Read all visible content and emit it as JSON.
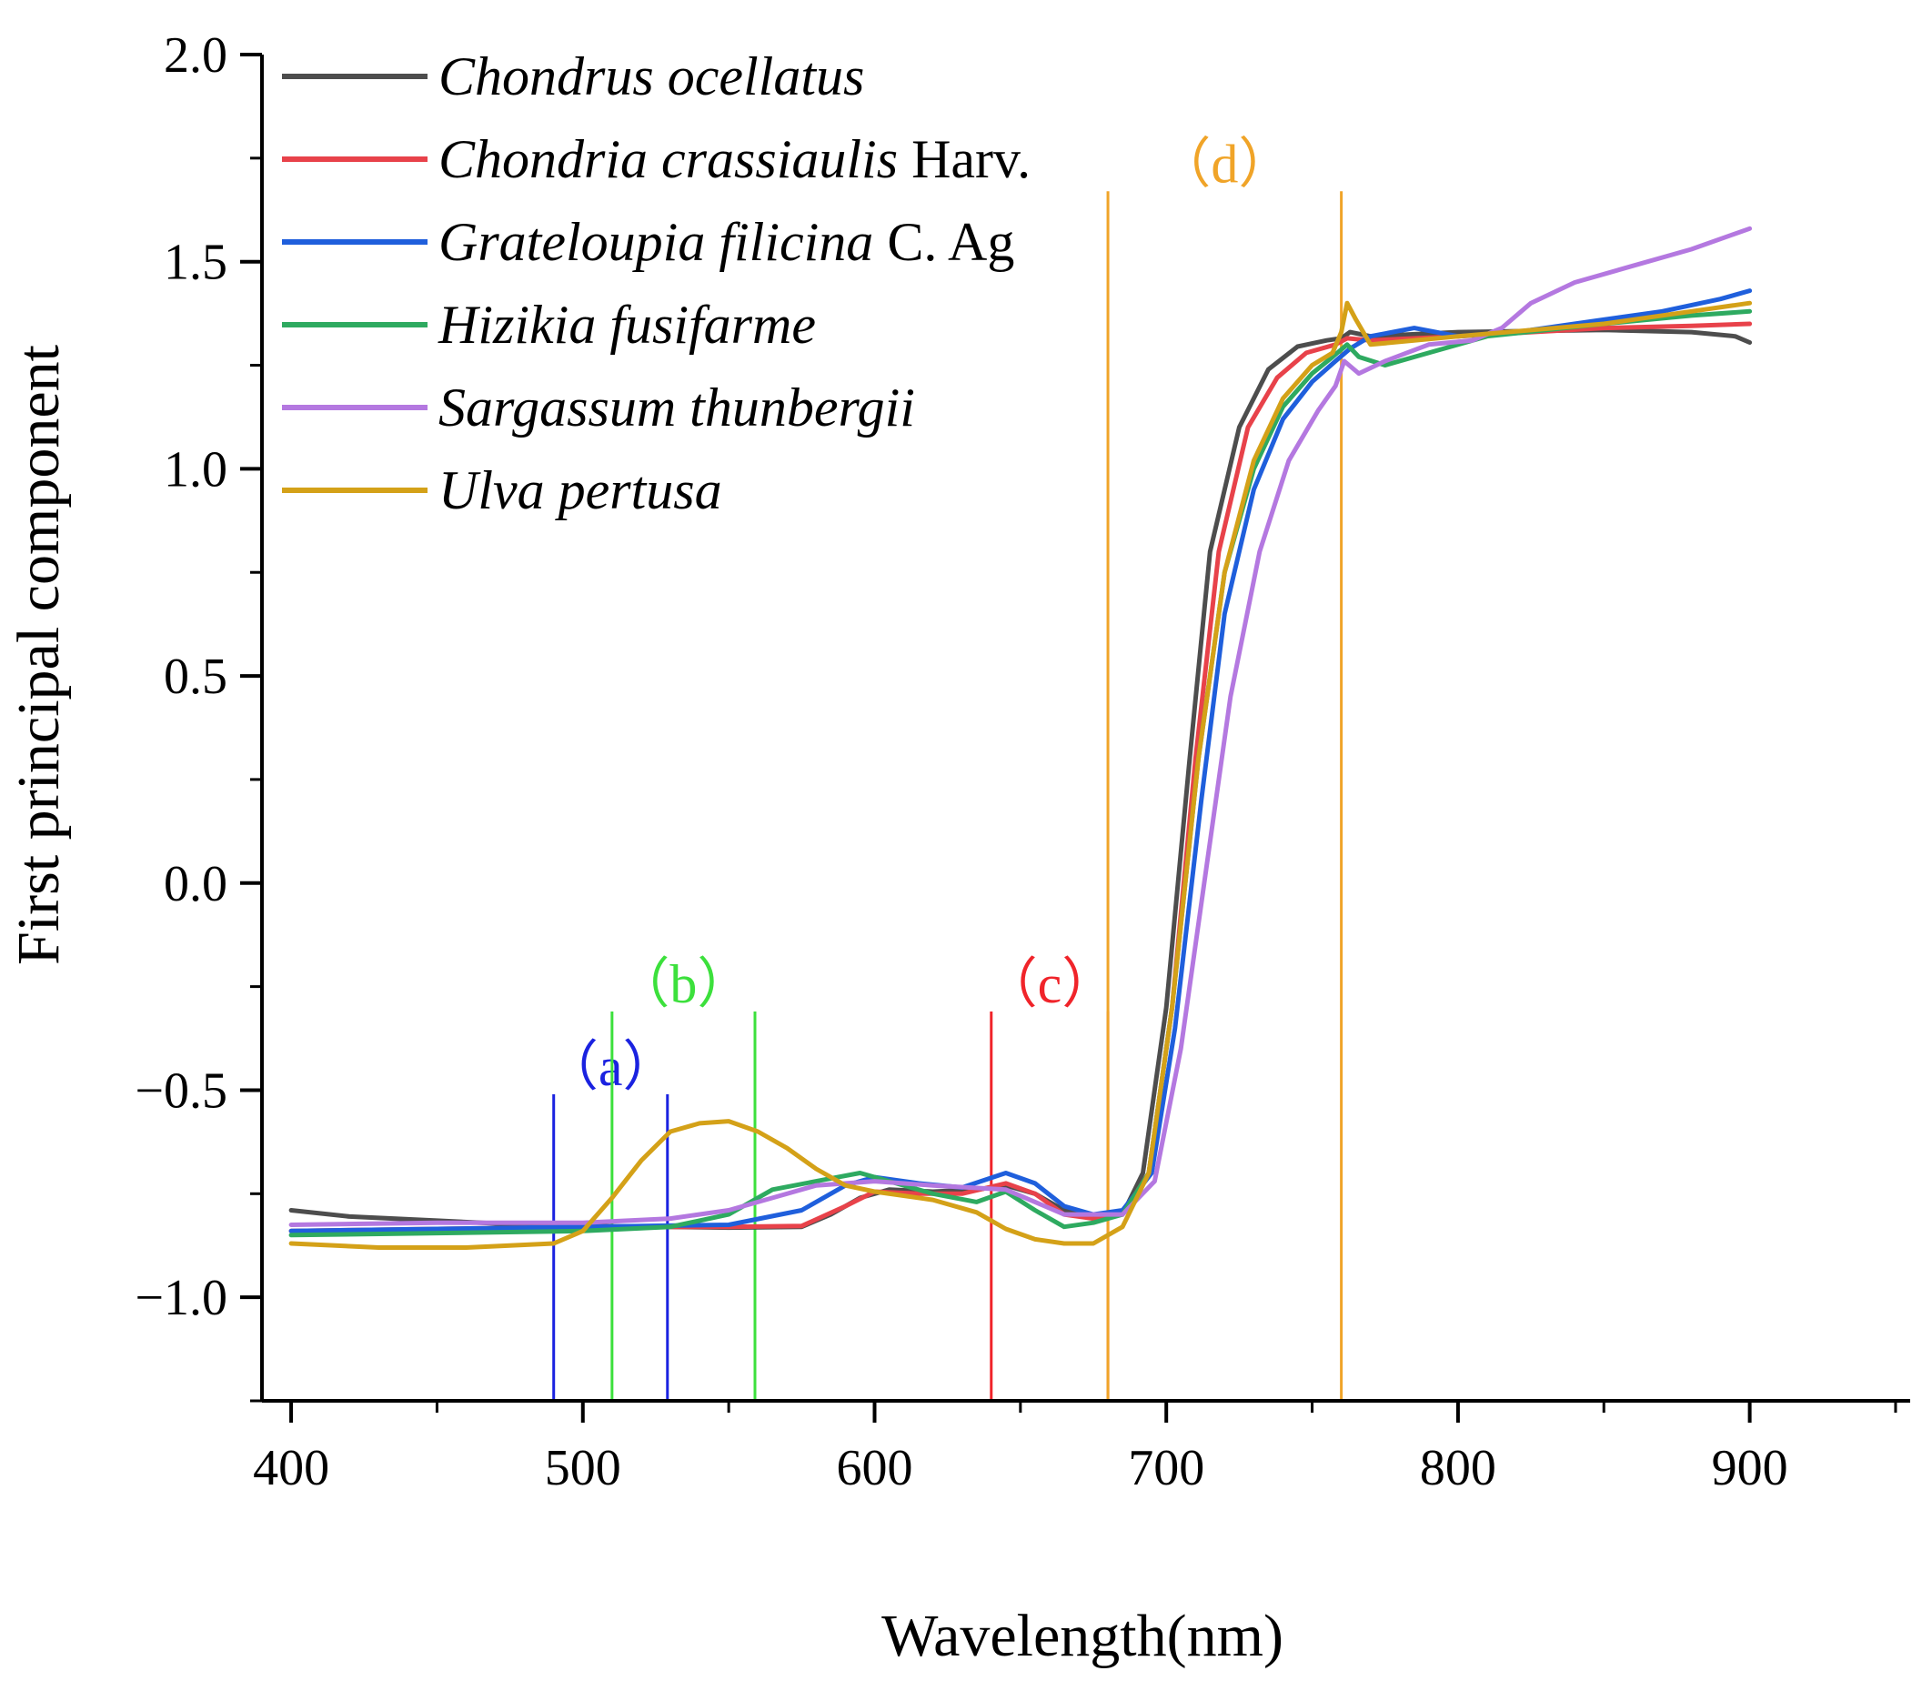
{
  "chart_data": {
    "type": "line",
    "title": "",
    "xlabel": "Wavelength(nm)",
    "ylabel": "First principal component",
    "xlim": [
      390,
      955
    ],
    "ylim": [
      -1.25,
      2.0
    ],
    "x_ticks": [
      400,
      500,
      600,
      700,
      800,
      900
    ],
    "x_tick_labels": [
      "400",
      "500",
      "600",
      "700",
      "800",
      "900"
    ],
    "y_ticks": [
      -1.0,
      -0.5,
      0.0,
      0.5,
      1.0,
      1.5,
      2.0
    ],
    "y_tick_labels": [
      "−1.0",
      "−0.5",
      "0.0",
      "0.5",
      "1.0",
      "1.5",
      "2.0"
    ],
    "grid": false,
    "legend_position": "top-left",
    "series": [
      {
        "name_italic": "Chondrus ocellatus",
        "name_suffix": "",
        "color": "#4d4d4d",
        "points": [
          [
            400,
            -0.79
          ],
          [
            420,
            -0.805
          ],
          [
            450,
            -0.815
          ],
          [
            480,
            -0.825
          ],
          [
            500,
            -0.828
          ],
          [
            550,
            -0.832
          ],
          [
            575,
            -0.83
          ],
          [
            585,
            -0.8
          ],
          [
            595,
            -0.76
          ],
          [
            605,
            -0.74
          ],
          [
            620,
            -0.745
          ],
          [
            635,
            -0.74
          ],
          [
            645,
            -0.73
          ],
          [
            655,
            -0.75
          ],
          [
            665,
            -0.79
          ],
          [
            675,
            -0.81
          ],
          [
            685,
            -0.8
          ],
          [
            692,
            -0.7
          ],
          [
            700,
            -0.3
          ],
          [
            708,
            0.3
          ],
          [
            715,
            0.8
          ],
          [
            725,
            1.1
          ],
          [
            735,
            1.24
          ],
          [
            745,
            1.295
          ],
          [
            755,
            1.31
          ],
          [
            760,
            1.315
          ],
          [
            763,
            1.33
          ],
          [
            770,
            1.32
          ],
          [
            800,
            1.33
          ],
          [
            850,
            1.335
          ],
          [
            880,
            1.33
          ],
          [
            895,
            1.32
          ],
          [
            900,
            1.305
          ]
        ]
      },
      {
        "name_italic": "Chondria crassiaulis",
        "name_suffix": " Harv.",
        "color": "#e8424a",
        "points": [
          [
            400,
            -0.84
          ],
          [
            450,
            -0.835
          ],
          [
            500,
            -0.83
          ],
          [
            550,
            -0.83
          ],
          [
            575,
            -0.828
          ],
          [
            590,
            -0.78
          ],
          [
            600,
            -0.745
          ],
          [
            615,
            -0.75
          ],
          [
            630,
            -0.75
          ],
          [
            645,
            -0.725
          ],
          [
            655,
            -0.75
          ],
          [
            665,
            -0.8
          ],
          [
            675,
            -0.81
          ],
          [
            685,
            -0.8
          ],
          [
            694,
            -0.7
          ],
          [
            702,
            -0.3
          ],
          [
            710,
            0.3
          ],
          [
            718,
            0.8
          ],
          [
            728,
            1.1
          ],
          [
            738,
            1.22
          ],
          [
            748,
            1.28
          ],
          [
            758,
            1.3
          ],
          [
            762,
            1.315
          ],
          [
            770,
            1.31
          ],
          [
            800,
            1.32
          ],
          [
            850,
            1.34
          ],
          [
            880,
            1.345
          ],
          [
            900,
            1.35
          ]
        ]
      },
      {
        "name_italic": "Grateloupia filicina",
        "name_suffix": " C. Ag",
        "color": "#1f5fdc",
        "points": [
          [
            400,
            -0.84
          ],
          [
            450,
            -0.835
          ],
          [
            500,
            -0.83
          ],
          [
            550,
            -0.825
          ],
          [
            575,
            -0.79
          ],
          [
            590,
            -0.73
          ],
          [
            600,
            -0.71
          ],
          [
            615,
            -0.725
          ],
          [
            630,
            -0.735
          ],
          [
            645,
            -0.7
          ],
          [
            655,
            -0.725
          ],
          [
            665,
            -0.78
          ],
          [
            675,
            -0.8
          ],
          [
            685,
            -0.79
          ],
          [
            695,
            -0.7
          ],
          [
            703,
            -0.35
          ],
          [
            712,
            0.2
          ],
          [
            720,
            0.65
          ],
          [
            730,
            0.95
          ],
          [
            740,
            1.12
          ],
          [
            750,
            1.21
          ],
          [
            758,
            1.26
          ],
          [
            763,
            1.29
          ],
          [
            770,
            1.32
          ],
          [
            785,
            1.34
          ],
          [
            800,
            1.32
          ],
          [
            820,
            1.33
          ],
          [
            850,
            1.36
          ],
          [
            870,
            1.38
          ],
          [
            890,
            1.41
          ],
          [
            900,
            1.43
          ]
        ]
      },
      {
        "name_italic": "Hizikia fusifarme",
        "name_suffix": "",
        "color": "#2eaa60",
        "points": [
          [
            400,
            -0.85
          ],
          [
            450,
            -0.845
          ],
          [
            500,
            -0.84
          ],
          [
            530,
            -0.83
          ],
          [
            550,
            -0.8
          ],
          [
            565,
            -0.74
          ],
          [
            580,
            -0.72
          ],
          [
            595,
            -0.7
          ],
          [
            605,
            -0.72
          ],
          [
            620,
            -0.75
          ],
          [
            635,
            -0.77
          ],
          [
            645,
            -0.745
          ],
          [
            655,
            -0.79
          ],
          [
            665,
            -0.83
          ],
          [
            675,
            -0.82
          ],
          [
            685,
            -0.8
          ],
          [
            694,
            -0.7
          ],
          [
            702,
            -0.3
          ],
          [
            711,
            0.3
          ],
          [
            720,
            0.75
          ],
          [
            730,
            1.0
          ],
          [
            740,
            1.15
          ],
          [
            750,
            1.23
          ],
          [
            757,
            1.27
          ],
          [
            762,
            1.3
          ],
          [
            766,
            1.27
          ],
          [
            775,
            1.25
          ],
          [
            790,
            1.28
          ],
          [
            810,
            1.32
          ],
          [
            850,
            1.35
          ],
          [
            880,
            1.37
          ],
          [
            900,
            1.38
          ]
        ]
      },
      {
        "name_italic": "Sargassum thunbergii",
        "name_suffix": "",
        "color": "#b478e0",
        "points": [
          [
            400,
            -0.825
          ],
          [
            450,
            -0.82
          ],
          [
            500,
            -0.82
          ],
          [
            530,
            -0.81
          ],
          [
            550,
            -0.79
          ],
          [
            565,
            -0.76
          ],
          [
            580,
            -0.73
          ],
          [
            600,
            -0.72
          ],
          [
            620,
            -0.73
          ],
          [
            645,
            -0.74
          ],
          [
            655,
            -0.77
          ],
          [
            665,
            -0.8
          ],
          [
            675,
            -0.8
          ],
          [
            685,
            -0.8
          ],
          [
            696,
            -0.72
          ],
          [
            705,
            -0.4
          ],
          [
            714,
            0.05
          ],
          [
            722,
            0.45
          ],
          [
            732,
            0.8
          ],
          [
            742,
            1.02
          ],
          [
            752,
            1.14
          ],
          [
            758,
            1.2
          ],
          [
            761,
            1.26
          ],
          [
            766,
            1.23
          ],
          [
            775,
            1.26
          ],
          [
            790,
            1.3
          ],
          [
            805,
            1.31
          ],
          [
            815,
            1.34
          ],
          [
            825,
            1.4
          ],
          [
            840,
            1.45
          ],
          [
            860,
            1.49
          ],
          [
            880,
            1.53
          ],
          [
            900,
            1.58
          ]
        ]
      },
      {
        "name_italic": "Ulva pertusa",
        "name_suffix": "",
        "color": "#d4a118",
        "points": [
          [
            400,
            -0.87
          ],
          [
            430,
            -0.88
          ],
          [
            460,
            -0.88
          ],
          [
            490,
            -0.87
          ],
          [
            500,
            -0.84
          ],
          [
            510,
            -0.76
          ],
          [
            520,
            -0.67
          ],
          [
            530,
            -0.6
          ],
          [
            540,
            -0.58
          ],
          [
            550,
            -0.575
          ],
          [
            560,
            -0.6
          ],
          [
            570,
            -0.64
          ],
          [
            580,
            -0.69
          ],
          [
            590,
            -0.73
          ],
          [
            600,
            -0.745
          ],
          [
            620,
            -0.765
          ],
          [
            635,
            -0.795
          ],
          [
            645,
            -0.835
          ],
          [
            655,
            -0.86
          ],
          [
            665,
            -0.87
          ],
          [
            675,
            -0.87
          ],
          [
            685,
            -0.83
          ],
          [
            694,
            -0.7
          ],
          [
            702,
            -0.3
          ],
          [
            711,
            0.3
          ],
          [
            720,
            0.75
          ],
          [
            730,
            1.02
          ],
          [
            740,
            1.17
          ],
          [
            750,
            1.25
          ],
          [
            757,
            1.28
          ],
          [
            760,
            1.33
          ],
          [
            762,
            1.4
          ],
          [
            765,
            1.36
          ],
          [
            770,
            1.3
          ],
          [
            800,
            1.32
          ],
          [
            850,
            1.35
          ],
          [
            880,
            1.38
          ],
          [
            900,
            1.4
          ]
        ]
      }
    ],
    "regions": [
      {
        "label": "（a）",
        "x": [
          490,
          529
        ],
        "color": "#1a22e0",
        "top": -0.51
      },
      {
        "label": "（b）",
        "x": [
          510,
          559
        ],
        "color": "#3ce03c",
        "top": -0.31
      },
      {
        "label": "（c）",
        "x": [
          640,
          680
        ],
        "color": "#f0242a",
        "top": -0.31
      },
      {
        "label": "（d）",
        "x": [
          680,
          760
        ],
        "color": "#f0a428",
        "top": 1.67
      }
    ]
  }
}
